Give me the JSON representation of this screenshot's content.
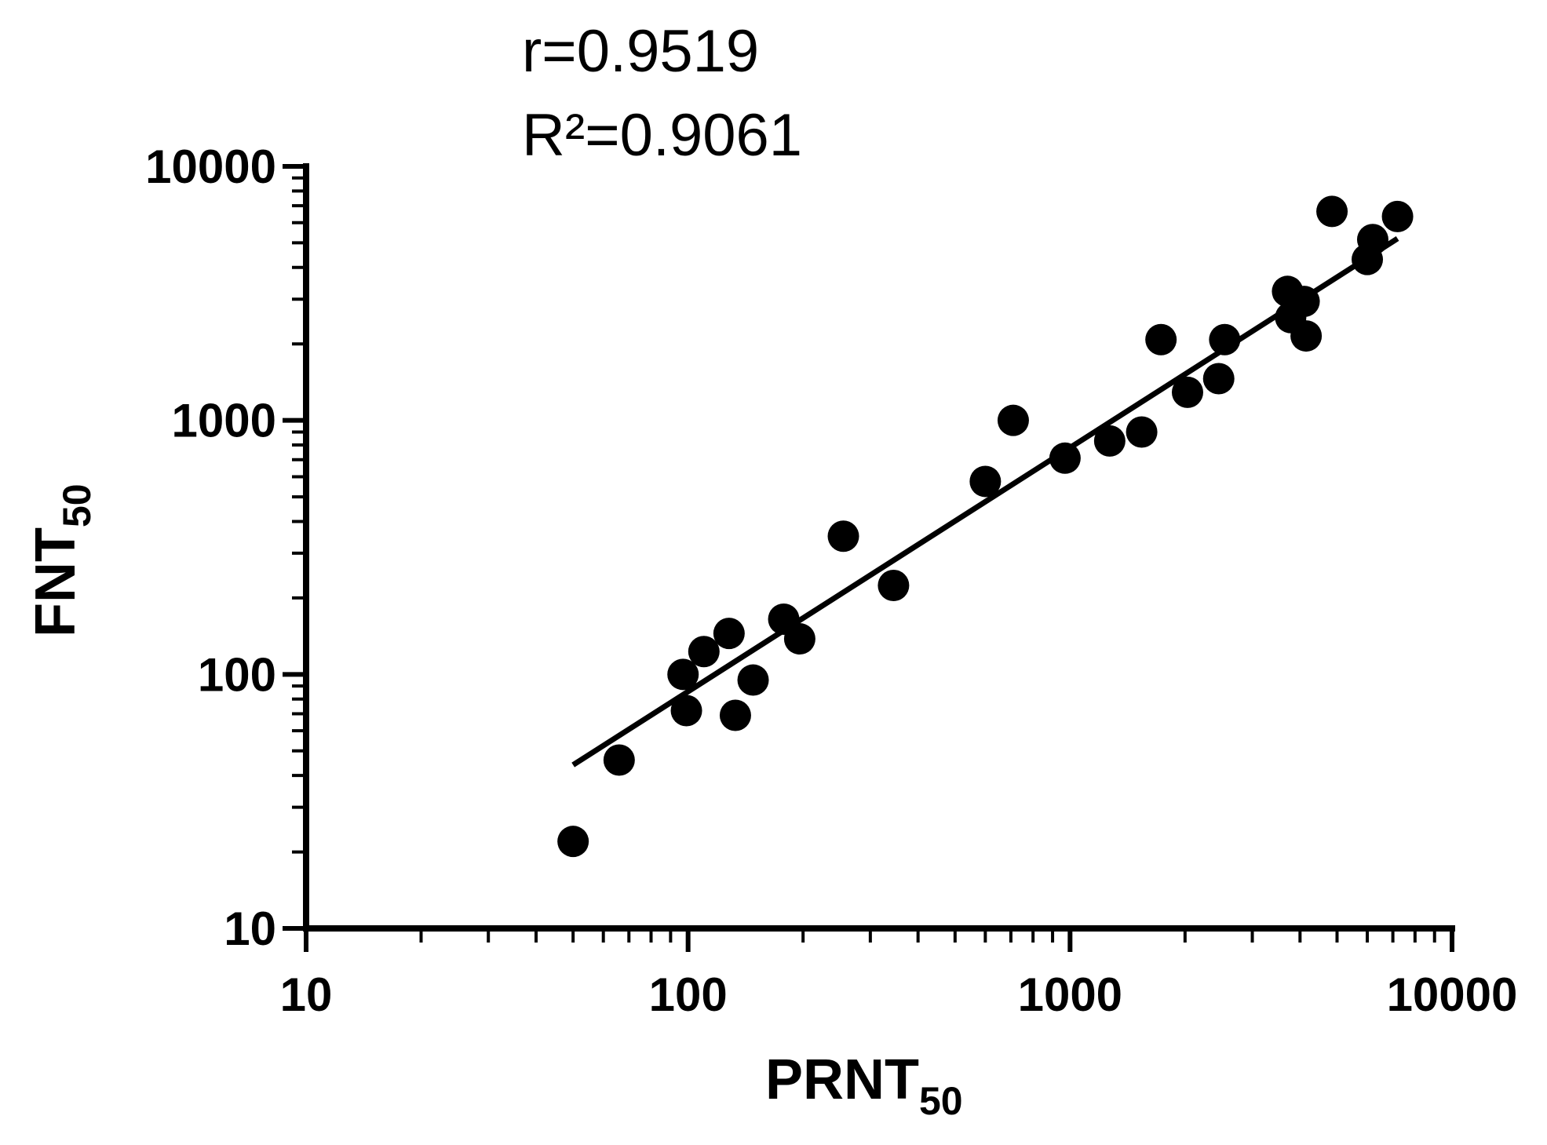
{
  "chart_data": {
    "type": "scatter",
    "annotations": {
      "r": "r=0.9519",
      "r2": "R²=0.9061"
    },
    "xlabel": {
      "main": "PRNT",
      "sub": "50"
    },
    "ylabel": {
      "main": "FNT",
      "sub": "50"
    },
    "x_scale": "log",
    "y_scale": "log",
    "xlim": [
      10,
      10000
    ],
    "ylim": [
      10,
      10000
    ],
    "x_ticks": [
      10,
      100,
      1000,
      10000
    ],
    "x_tick_labels": [
      "10",
      "100",
      "1000",
      "10000"
    ],
    "y_ticks": [
      10,
      100,
      1000,
      10000
    ],
    "y_tick_labels": [
      "10",
      "100",
      "1000",
      "10000"
    ],
    "grid": false,
    "marker_color": "#000000",
    "points": [
      {
        "x": 50,
        "y": 22
      },
      {
        "x": 66,
        "y": 46
      },
      {
        "x": 97,
        "y": 100
      },
      {
        "x": 99,
        "y": 72
      },
      {
        "x": 110,
        "y": 123
      },
      {
        "x": 128,
        "y": 145
      },
      {
        "x": 133,
        "y": 69
      },
      {
        "x": 148,
        "y": 95
      },
      {
        "x": 178,
        "y": 165
      },
      {
        "x": 196,
        "y": 138
      },
      {
        "x": 255,
        "y": 350
      },
      {
        "x": 345,
        "y": 224
      },
      {
        "x": 600,
        "y": 575
      },
      {
        "x": 710,
        "y": 1000
      },
      {
        "x": 970,
        "y": 710
      },
      {
        "x": 1270,
        "y": 830
      },
      {
        "x": 1540,
        "y": 900
      },
      {
        "x": 1730,
        "y": 2080
      },
      {
        "x": 2030,
        "y": 1290
      },
      {
        "x": 2450,
        "y": 1460
      },
      {
        "x": 2540,
        "y": 2080
      },
      {
        "x": 3710,
        "y": 3220
      },
      {
        "x": 3780,
        "y": 2540
      },
      {
        "x": 4100,
        "y": 2940
      },
      {
        "x": 4150,
        "y": 2150
      },
      {
        "x": 4850,
        "y": 6650
      },
      {
        "x": 6000,
        "y": 4300
      },
      {
        "x": 6200,
        "y": 5150
      },
      {
        "x": 7200,
        "y": 6350
      }
    ],
    "fit_line": {
      "x": [
        50,
        7200
      ],
      "y": [
        44,
        5200
      ]
    }
  }
}
